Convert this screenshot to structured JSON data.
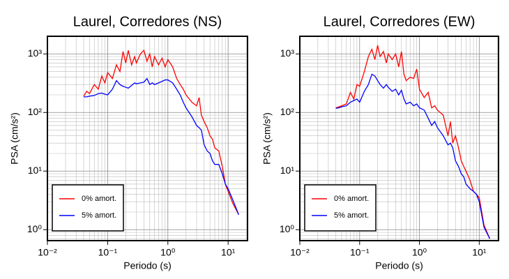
{
  "chart_data": [
    {
      "type": "line",
      "title": "Laurel, Corredores (NS)",
      "xlabel": "Periodo (s)",
      "ylabel": "PSA (cm/s²)",
      "x_scale": "log",
      "y_scale": "log",
      "grid": true,
      "legend": "lower left",
      "xlim": [
        0.01,
        21
      ],
      "ylim": [
        0.65,
        2000
      ],
      "xticks": [
        {
          "value": 0.01,
          "label": "10⁻²"
        },
        {
          "value": 0.1,
          "label": "10⁻¹"
        },
        {
          "value": 1,
          "label": "10⁰"
        },
        {
          "value": 10,
          "label": "10¹"
        }
      ],
      "yticks": [
        {
          "value": 1,
          "label": "10⁰"
        },
        {
          "value": 10,
          "label": "10¹"
        },
        {
          "value": 100,
          "label": "10²"
        },
        {
          "value": 1000,
          "label": "10³"
        }
      ],
      "x": [
        0.04,
        0.045,
        0.05,
        0.06,
        0.07,
        0.08,
        0.09,
        0.1,
        0.12,
        0.14,
        0.16,
        0.18,
        0.2,
        0.22,
        0.25,
        0.28,
        0.3,
        0.35,
        0.4,
        0.45,
        0.5,
        0.55,
        0.6,
        0.7,
        0.8,
        0.9,
        1,
        1.2,
        1.4,
        1.6,
        1.8,
        2,
        2.5,
        3,
        3.3,
        3.6,
        4,
        4.5,
        5,
        5.5,
        6,
        7,
        8,
        9,
        10,
        12,
        15
      ],
      "series": [
        {
          "name": "0% amort.",
          "color": "#ff0000",
          "values": [
            190,
            230,
            210,
            300,
            250,
            420,
            320,
            480,
            380,
            650,
            500,
            1100,
            700,
            1150,
            650,
            900,
            700,
            1000,
            1150,
            750,
            1000,
            600,
            900,
            650,
            850,
            600,
            800,
            600,
            380,
            300,
            250,
            200,
            150,
            130,
            180,
            90,
            70,
            55,
            40,
            35,
            25,
            22,
            12,
            6,
            4.5,
            2.8,
            1.8
          ]
        },
        {
          "name": "5% amort.",
          "color": "#0000ff",
          "values": [
            185,
            185,
            190,
            195,
            210,
            215,
            205,
            200,
            250,
            350,
            300,
            280,
            270,
            260,
            290,
            320,
            310,
            320,
            330,
            380,
            300,
            320,
            300,
            320,
            340,
            360,
            360,
            320,
            250,
            200,
            150,
            120,
            85,
            60,
            55,
            50,
            28,
            22,
            20,
            15,
            13,
            13,
            9,
            6,
            5,
            3.2,
            1.8
          ]
        }
      ]
    },
    {
      "type": "line",
      "title": "Laurel, Corredores (EW)",
      "xlabel": "Periodo (s)",
      "ylabel": "PSA (cm/s²)",
      "x_scale": "log",
      "y_scale": "log",
      "grid": true,
      "legend": "lower left",
      "xlim": [
        0.01,
        21
      ],
      "ylim": [
        0.65,
        2000
      ],
      "xticks": [
        {
          "value": 0.01,
          "label": "10⁻²"
        },
        {
          "value": 0.1,
          "label": "10⁻¹"
        },
        {
          "value": 1,
          "label": "10⁰"
        },
        {
          "value": 10,
          "label": "10¹"
        }
      ],
      "yticks": [
        {
          "value": 1,
          "label": "10⁰"
        },
        {
          "value": 10,
          "label": "10¹"
        },
        {
          "value": 100,
          "label": "10²"
        },
        {
          "value": 1000,
          "label": "10³"
        }
      ],
      "x": [
        0.04,
        0.045,
        0.05,
        0.06,
        0.07,
        0.08,
        0.09,
        0.1,
        0.12,
        0.14,
        0.16,
        0.18,
        0.2,
        0.22,
        0.25,
        0.28,
        0.3,
        0.35,
        0.4,
        0.45,
        0.5,
        0.55,
        0.6,
        0.7,
        0.8,
        0.9,
        1,
        1.2,
        1.4,
        1.6,
        1.8,
        2,
        2.5,
        3,
        3.3,
        3.6,
        4,
        4.5,
        5,
        5.5,
        6,
        7,
        8,
        9,
        10,
        12,
        15
      ],
      "series": [
        {
          "name": "0% amort.",
          "color": "#ff0000",
          "values": [
            120,
            125,
            130,
            140,
            220,
            170,
            300,
            280,
            500,
            900,
            1200,
            800,
            1400,
            900,
            1100,
            700,
            1000,
            800,
            1000,
            600,
            1100,
            450,
            350,
            400,
            380,
            550,
            250,
            180,
            220,
            120,
            130,
            110,
            90,
            40,
            70,
            30,
            40,
            25,
            15,
            12,
            10,
            7,
            4.5,
            4,
            3.5,
            1.2,
            0.7
          ]
        },
        {
          "name": "5% amort.",
          "color": "#0000ff",
          "values": [
            118,
            120,
            125,
            130,
            150,
            160,
            170,
            150,
            230,
            300,
            450,
            420,
            350,
            300,
            260,
            300,
            270,
            230,
            250,
            200,
            240,
            170,
            140,
            150,
            130,
            140,
            120,
            110,
            80,
            60,
            70,
            55,
            40,
            28,
            30,
            25,
            15,
            12,
            9,
            8,
            6,
            5,
            4.5,
            4,
            3,
            1.1,
            0.7
          ]
        }
      ]
    }
  ]
}
